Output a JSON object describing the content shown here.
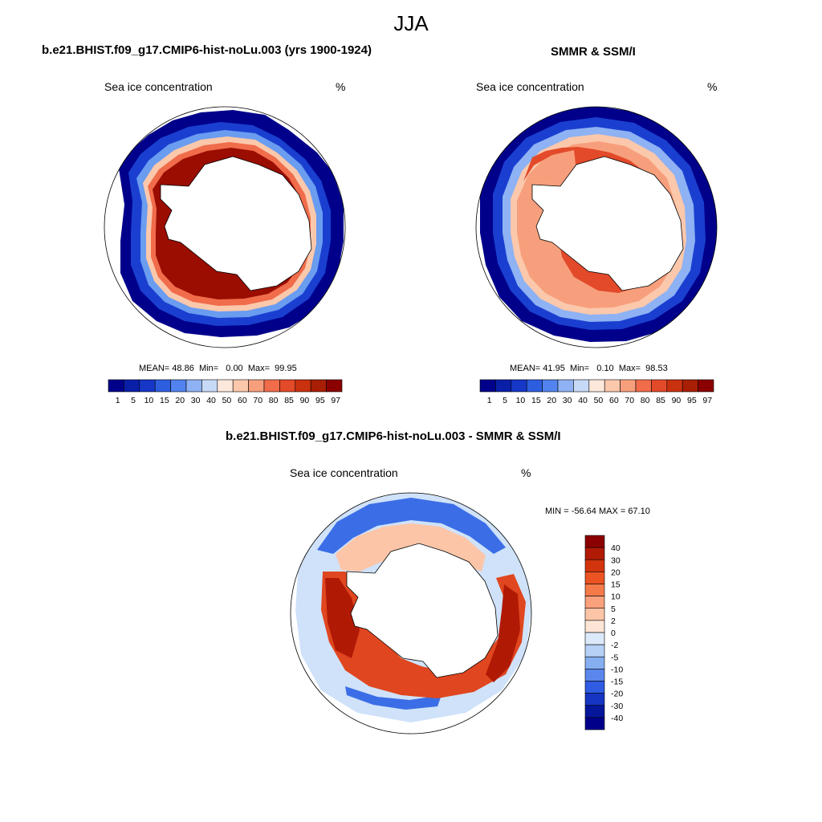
{
  "figure": {
    "title": "JJA"
  },
  "panels": [
    {
      "title": "b.e21.BHIST.f09_g17.CMIP6-hist-noLu.003 (yrs 1900-1924)",
      "left_label": "Sea ice concentration",
      "right_label": "%",
      "stats": {
        "mean_label": "MEAN=",
        "mean": "48.86",
        "min_label": "Min=",
        "min": "0.00",
        "max_label": "Max=",
        "max": "99.95"
      }
    },
    {
      "title": "SMMR & SSM/I",
      "left_label": "Sea ice concentration",
      "right_label": "%",
      "stats": {
        "mean_label": "MEAN=",
        "mean": "41.95",
        "min_label": "Min=",
        "min": "0.10",
        "max_label": "Max=",
        "max": "98.53"
      }
    },
    {
      "title": "b.e21.BHIST.f09_g17.CMIP6-hist-noLu.003 - SMMR & SSM/I",
      "left_label": "Sea ice concentration",
      "right_label": "%",
      "stats_text": "MIN = -56.64 MAX =  67.10"
    }
  ],
  "colorbar_conc": {
    "labels": [
      "1",
      "5",
      "10",
      "15",
      "20",
      "30",
      "40",
      "50",
      "60",
      "70",
      "80",
      "85",
      "90",
      "95",
      "97"
    ],
    "colors": [
      "#00008b",
      "#0a1fa8",
      "#1637c7",
      "#2e5ee0",
      "#5283ee",
      "#8eb2f3",
      "#c6daf8",
      "#fde8dc",
      "#fbc8ac",
      "#f79f7c",
      "#f06c4b",
      "#e34a2a",
      "#c9310f",
      "#a81f06",
      "#8b0000"
    ]
  },
  "colorbar_diff": {
    "labels": [
      "40",
      "30",
      "20",
      "15",
      "10",
      "5",
      "2",
      "0",
      "-2",
      "-5",
      "-10",
      "-15",
      "-20",
      "-30",
      "-40"
    ],
    "colors": [
      "#8b0000",
      "#b01a05",
      "#d2350e",
      "#ec5323",
      "#f47a4a",
      "#f9a17c",
      "#fcc5a8",
      "#fde5d6",
      "#dbe9fa",
      "#b6d0f6",
      "#86aff1",
      "#5b87ec",
      "#2f5ce3",
      "#1535c2",
      "#06169a",
      "#00008b"
    ]
  },
  "map_data": {
    "projection": "south-polar-stereographic",
    "colors": {
      "model": {
        "ring1": "#00008b",
        "ring2": "#1a3fd0",
        "ring3": "#6a9cf0",
        "ring4": "#fbc8ac",
        "ring5": "#f06c4b",
        "ring6": "#c9310f",
        "core": "#9a0d00"
      },
      "obs": {
        "ring1": "#00008b",
        "ring2": "#1a3fd0",
        "ring3": "#8eb2f3",
        "ring4": "#fbc8ac",
        "ring5": "#f79f7c",
        "ring6": "#e34a2a",
        "core": "#b8240a"
      },
      "diff": {
        "outer": "#cfe2fa",
        "blue": "#3b6ee6",
        "pale": "#fcc5a8",
        "red": "#e0461f",
        "dark": "#b01a05"
      }
    }
  }
}
